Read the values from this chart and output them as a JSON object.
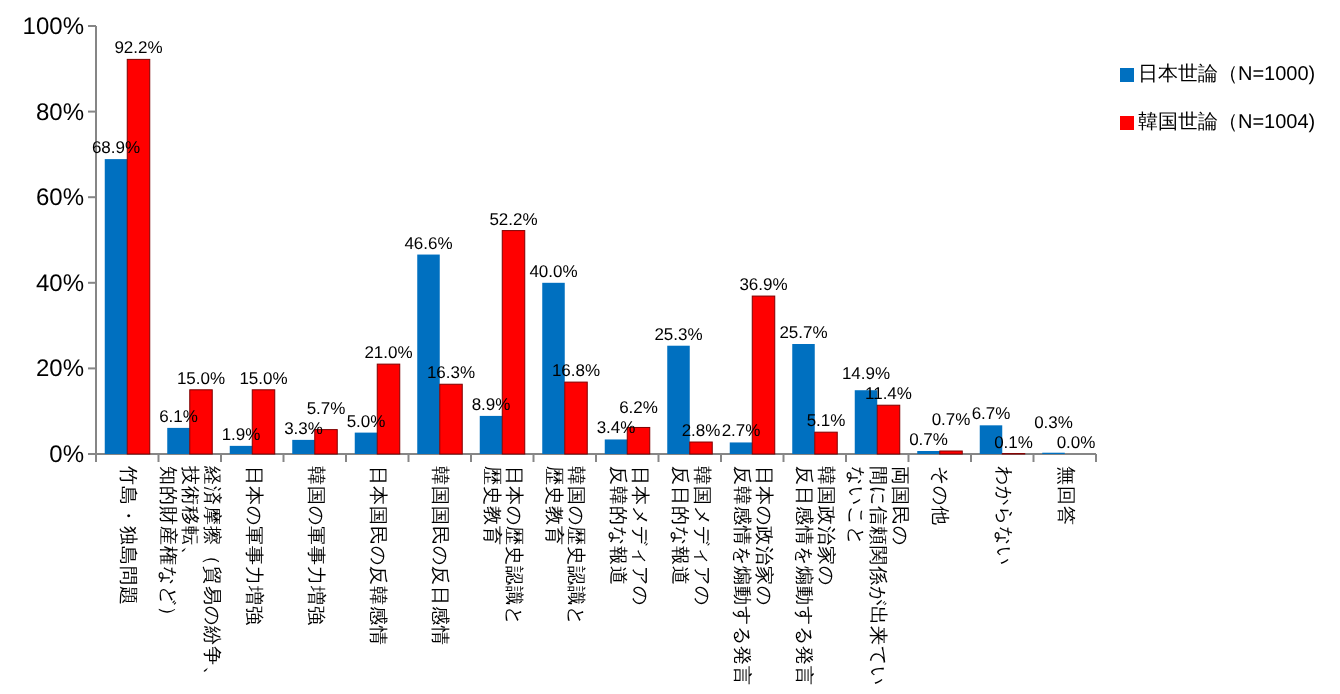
{
  "chart_data": {
    "type": "bar",
    "categories": [
      "竹島・独島問題",
      "経済摩擦（貿易の紛争、技術移転、知的財産権など）",
      "日本の軍事力増強",
      "韓国の軍事力増強",
      "日本国民の反韓感情",
      "韓国国民の反日感情",
      "日本の歴史認識と歴史教育",
      "韓国の歴史認識と歴史教育",
      "日本メディアの反韓的な報道",
      "韓国メディアの反日的な報道",
      "日本の政治家の反韓感情を煽動する発言",
      "韓国政治家の反日感情を煽動する発言",
      "両国民の間に信頼関係が出来ていないこと",
      "その他",
      "わからない",
      "無回答"
    ],
    "series": [
      {
        "name": "日本世論（N=1000)",
        "color": "#0070c0",
        "values": [
          68.9,
          6.1,
          1.9,
          3.3,
          5.0,
          46.6,
          8.9,
          40.0,
          3.4,
          25.3,
          2.7,
          25.7,
          14.9,
          0.7,
          6.7,
          0.3
        ],
        "value_labels": [
          "68.9%",
          "6.1%",
          "1.9%",
          "3.3%",
          "5.0%",
          "46.6%",
          "8.9%",
          "40.0%",
          "3.4%",
          "25.3%",
          "2.7%",
          "25.7%",
          "14.9%",
          "0.7%",
          "6.7%",
          "0.3%"
        ]
      },
      {
        "name": "韓国世論（N=1004)",
        "color": "#ff0000",
        "values": [
          92.2,
          15.0,
          15.0,
          5.7,
          21.0,
          16.3,
          52.2,
          16.8,
          6.2,
          2.8,
          36.9,
          5.1,
          11.4,
          0.7,
          0.1,
          0.0
        ],
        "value_labels": [
          "92.2%",
          "15.0%",
          "15.0%",
          "5.7%",
          "21.0%",
          "16.3%",
          "52.2%",
          "16.8%",
          "6.2%",
          "2.8%",
          "36.9%",
          "5.1%",
          "11.4%",
          "0.7%",
          "0.1%",
          "0.0%"
        ]
      }
    ],
    "ylim": [
      0,
      100
    ],
    "yticks": [
      {
        "value": 0,
        "label": "0%"
      },
      {
        "value": 20,
        "label": "20%"
      },
      {
        "value": 40,
        "label": "40%"
      },
      {
        "value": 60,
        "label": "60%"
      },
      {
        "value": 80,
        "label": "80%"
      },
      {
        "value": 100,
        "label": "100%"
      }
    ],
    "grid": false,
    "legend": "right"
  }
}
